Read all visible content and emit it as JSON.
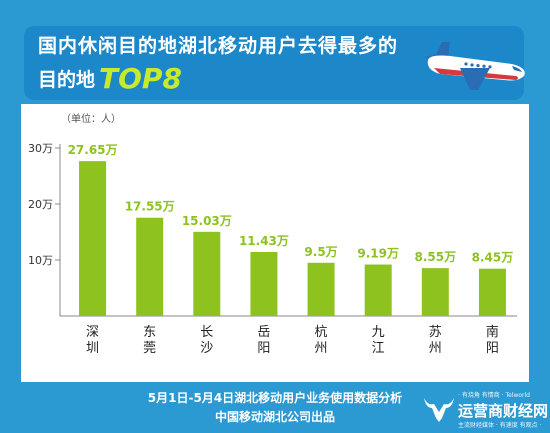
{
  "header": {
    "title_line1": "国内休闲目的地湖北移动用户去得最多的",
    "title_line2": "目的地",
    "title_highlight": "TOP8"
  },
  "chart_data": {
    "type": "bar",
    "unit_label": "（单位：人）",
    "categories": [
      "深圳",
      "东莞",
      "长沙",
      "岳阳",
      "杭州",
      "九江",
      "苏州",
      "南阳"
    ],
    "values": [
      276500,
      175500,
      150300,
      114300,
      95000,
      91900,
      85500,
      84500
    ],
    "value_labels": [
      "27.65万",
      "17.55万",
      "15.03万",
      "11.43万",
      "9.5万",
      "9.19万",
      "8.55万",
      "8.45万"
    ],
    "y_ticks": [
      100000,
      200000,
      300000
    ],
    "y_tick_labels": [
      "10万",
      "20万",
      "30万"
    ],
    "ylim": [
      0,
      300000
    ],
    "bar_color": "#8dc21f",
    "label_color": "#8dc21f"
  },
  "footer": {
    "line1": "5月1日-5月4日湖北移动用户业务使用数据分析",
    "line2": "中国移动湖北公司出品"
  },
  "watermark": {
    "top": "· 有烧角 有情商 · Telworld",
    "main": "运营商财经网",
    "bottom": "主流财经媒体 · 有速度 有观点 ·"
  },
  "colors": {
    "background": "#2b9ad3",
    "banner": "#1c88c9",
    "accent": "#c8ea2a"
  }
}
